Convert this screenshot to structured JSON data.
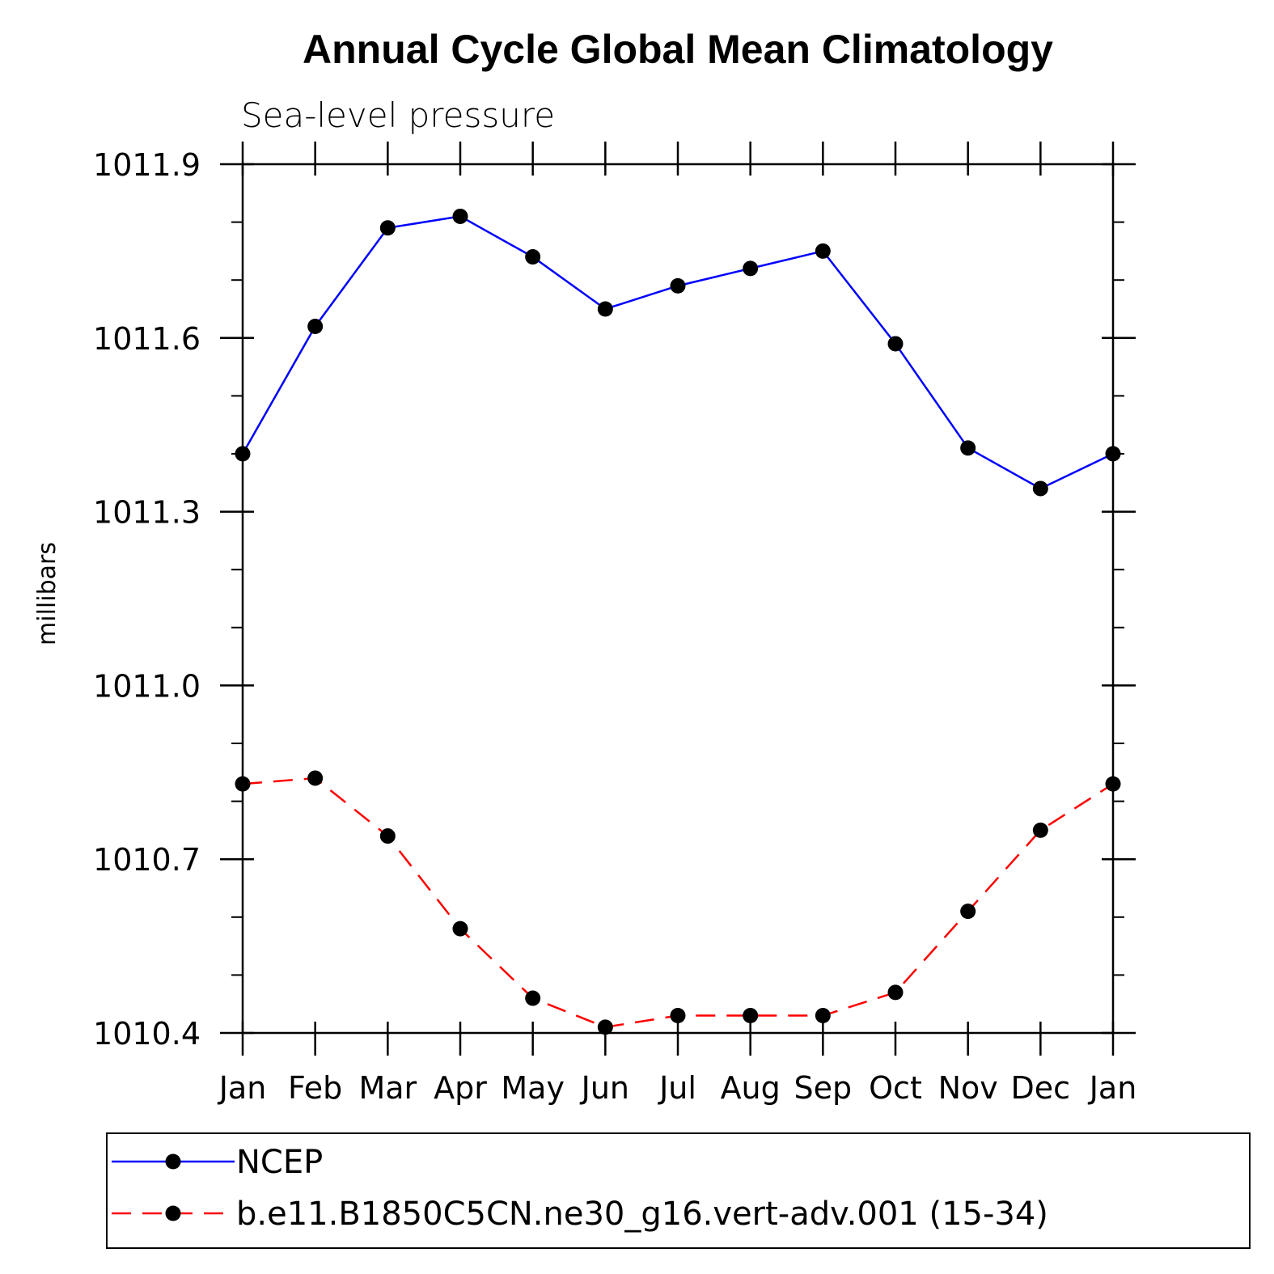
{
  "chart_data": {
    "type": "line",
    "title": "Annual Cycle Global Mean Climatology",
    "subtitle": "Sea-level pressure",
    "ylabel": "millibars",
    "xlabel": "",
    "categories": [
      "Jan",
      "Feb",
      "Mar",
      "Apr",
      "May",
      "Jun",
      "Jul",
      "Aug",
      "Sep",
      "Oct",
      "Nov",
      "Dec",
      "Jan"
    ],
    "ylim": [
      1010.4,
      1011.9
    ],
    "yticks": [
      "1010.4",
      "1010.7",
      "1011.0",
      "1011.3",
      "1011.6",
      "1011.9"
    ],
    "ytick_values": [
      1010.4,
      1010.7,
      1011.0,
      1011.3,
      1011.6,
      1011.9
    ],
    "minor_ytick_step": 0.1,
    "grid": false,
    "legend_position": "bottom",
    "series": [
      {
        "name": "NCEP",
        "color": "#0000ff",
        "style": "solid",
        "values": [
          1011.4,
          1011.62,
          1011.79,
          1011.81,
          1011.74,
          1011.65,
          1011.69,
          1011.72,
          1011.75,
          1011.59,
          1011.41,
          1011.34,
          1011.4
        ]
      },
      {
        "name": "b.e11.B1850C5CN.ne30_g16.vert-adv.001 (15-34)",
        "color": "#ff0000",
        "style": "dashed",
        "values": [
          1010.83,
          1010.84,
          1010.74,
          1010.58,
          1010.46,
          1010.41,
          1010.43,
          1010.43,
          1010.43,
          1010.47,
          1010.61,
          1010.75,
          1010.83
        ]
      }
    ]
  }
}
